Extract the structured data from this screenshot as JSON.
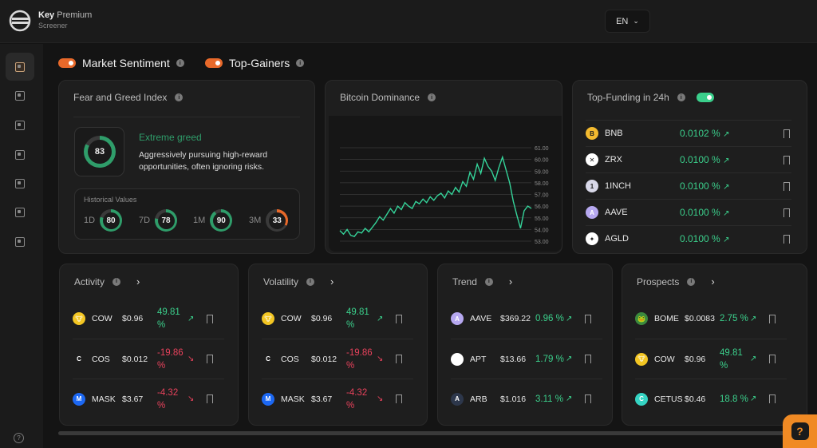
{
  "brand": {
    "name_bold": "Key",
    "name_light": "Premium",
    "subtitle": "Screener"
  },
  "language": {
    "value": "EN"
  },
  "filters": [
    {
      "label": "Market Sentiment",
      "enabled": true
    },
    {
      "label": "Top-Gainers",
      "enabled": true
    }
  ],
  "fear_greed": {
    "title": "Fear and Greed Index",
    "score": "83",
    "score_value": 83,
    "label": "Extreme greed",
    "description": "Aggressively pursuing high-reward opportunities, often ignoring risks.",
    "history_title": "Historical Values",
    "history": [
      {
        "period": "1D",
        "value": "80",
        "num": 80,
        "color": "#2f9d6a"
      },
      {
        "period": "7D",
        "value": "78",
        "num": 78,
        "color": "#2f9d6a"
      },
      {
        "period": "1M",
        "value": "90",
        "num": 90,
        "color": "#2f9d6a"
      },
      {
        "period": "3M",
        "value": "33",
        "num": 33,
        "color": "#e8692a"
      }
    ]
  },
  "btc_dominance": {
    "title": "Bitcoin Dominance",
    "y_ticks": [
      "61.00",
      "60.00",
      "59.00",
      "58.00",
      "57.00",
      "56.00",
      "55.00",
      "54.00",
      "53.00"
    ]
  },
  "chart_data": {
    "type": "line",
    "title": "Bitcoin Dominance",
    "ylim": [
      53,
      61
    ],
    "series": [
      {
        "name": "BTC Dominance",
        "values": [
          53.9,
          53.6,
          54.0,
          53.5,
          53.4,
          53.8,
          53.7,
          54.1,
          53.8,
          54.2,
          54.6,
          55.1,
          54.8,
          55.3,
          55.8,
          55.4,
          56.0,
          55.7,
          56.3,
          56.0,
          55.8,
          56.4,
          56.2,
          56.6,
          56.3,
          56.8,
          56.5,
          56.9,
          57.1,
          56.7,
          57.3,
          57.0,
          57.6,
          57.2,
          58.1,
          57.7,
          58.9,
          58.3,
          59.6,
          58.8,
          60.1,
          59.4,
          59.0,
          58.2,
          59.3,
          60.2,
          59.1,
          58.0,
          56.4,
          55.2,
          54.1,
          55.6,
          56.0,
          55.8
        ]
      }
    ]
  },
  "funding": {
    "title": "Top-Funding in 24h",
    "rows": [
      {
        "symbol": "BNB",
        "rate": "0.0102 %",
        "icon": "B",
        "bg": "#f3ba2f",
        "fg": "#1e1e1e"
      },
      {
        "symbol": "ZRX",
        "rate": "0.0100 %",
        "icon": "✕",
        "bg": "#ffffff",
        "fg": "#1e1e1e"
      },
      {
        "symbol": "1INCH",
        "rate": "0.0100 %",
        "icon": "1",
        "bg": "#d8d8e8",
        "fg": "#1e1e1e"
      },
      {
        "symbol": "AAVE",
        "rate": "0.0100 %",
        "icon": "A",
        "bg": "#b6a8f0",
        "fg": "#ffffff"
      },
      {
        "symbol": "AGLD",
        "rate": "0.0100 %",
        "icon": "✦",
        "bg": "#ffffff",
        "fg": "#1e1e1e"
      }
    ]
  },
  "cards": [
    {
      "title": "Activity",
      "rows": [
        {
          "symbol": "COW",
          "price": "$0.96",
          "change": "49.81 %",
          "dir": "up",
          "icon": "🐮",
          "bg": "#f3c623"
        },
        {
          "symbol": "COS",
          "price": "$0.012",
          "change": "-19.86 %",
          "dir": "down",
          "icon": "C",
          "bg": "#1e1e1e"
        },
        {
          "symbol": "MASK",
          "price": "$3.67",
          "change": "-4.32 %",
          "dir": "down",
          "icon": "M",
          "bg": "#1c68f3"
        }
      ]
    },
    {
      "title": "Volatility",
      "rows": [
        {
          "symbol": "COW",
          "price": "$0.96",
          "change": "49.81 %",
          "dir": "up",
          "icon": "🐮",
          "bg": "#f3c623"
        },
        {
          "symbol": "COS",
          "price": "$0.012",
          "change": "-19.86 %",
          "dir": "down",
          "icon": "C",
          "bg": "#1e1e1e"
        },
        {
          "symbol": "MASK",
          "price": "$3.67",
          "change": "-4.32 %",
          "dir": "down",
          "icon": "M",
          "bg": "#1c68f3"
        }
      ]
    },
    {
      "title": "Trend",
      "rows": [
        {
          "symbol": "AAVE",
          "price": "$369.22",
          "change": "0.96 %",
          "dir": "up",
          "icon": "A",
          "bg": "#b6a8f0"
        },
        {
          "symbol": "APT",
          "price": "$13.66",
          "change": "1.79 %",
          "dir": "up",
          "icon": "≡",
          "bg": "#ffffff"
        },
        {
          "symbol": "ARB",
          "price": "$1.016",
          "change": "3.11 %",
          "dir": "up",
          "icon": "A",
          "bg": "#2d374b"
        }
      ]
    },
    {
      "title": "Prospects",
      "rows": [
        {
          "symbol": "BOME",
          "price": "$0.0083",
          "change": "2.75 %",
          "dir": "up",
          "icon": "🐸",
          "bg": "#3b8a3e"
        },
        {
          "symbol": "COW",
          "price": "$0.96",
          "change": "49.81 %",
          "dir": "up",
          "icon": "🐮",
          "bg": "#f3c623"
        },
        {
          "symbol": "CETUS",
          "price": "$0.46",
          "change": "18.8 %",
          "dir": "up",
          "icon": "C",
          "bg": "#35d4c3"
        }
      ]
    }
  ],
  "chat": {
    "label": "?"
  },
  "help": {
    "label": "?"
  }
}
